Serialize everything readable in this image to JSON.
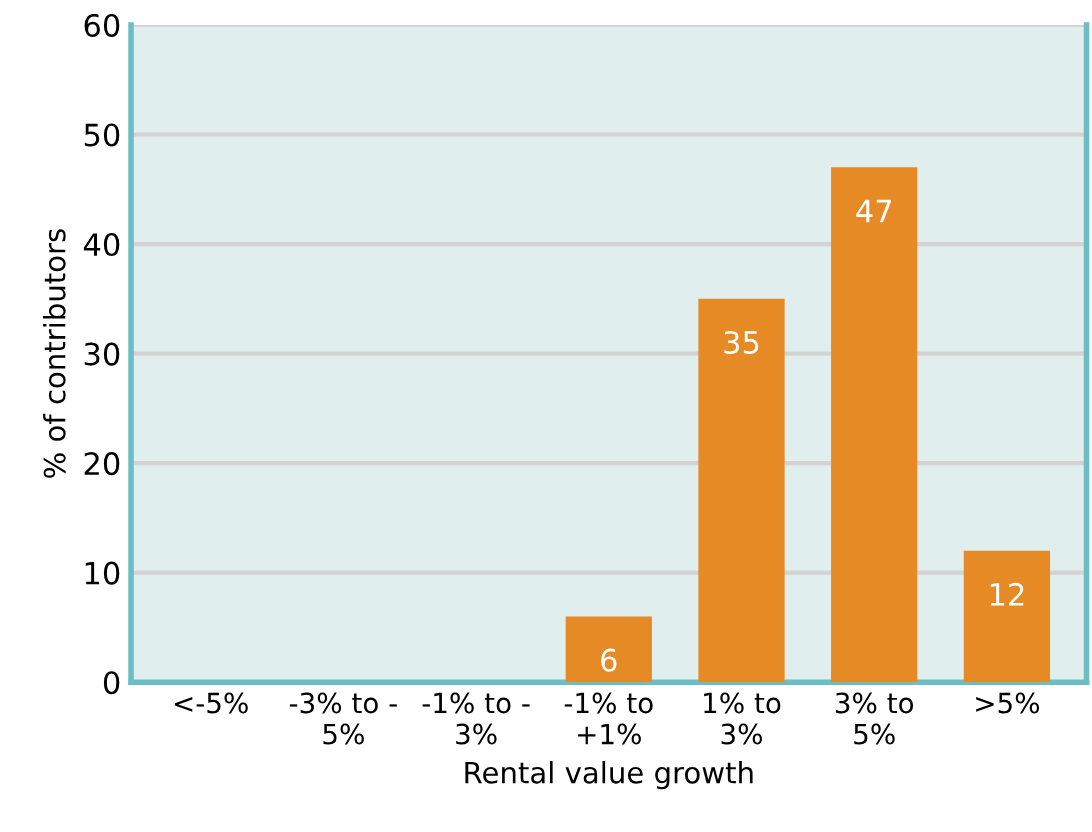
{
  "chart_data": {
    "type": "bar",
    "xlabel": "Rental value growth",
    "ylabel": "% of contributors",
    "categories": [
      "<-5%",
      "-3% to -\n5%",
      "-1% to -\n3%",
      "-1% to\n+1%",
      "1% to\n3%",
      "3% to\n5%",
      ">5%"
    ],
    "values": [
      0,
      0,
      0,
      6,
      35,
      47,
      12
    ],
    "value_labels": [
      null,
      null,
      null,
      "6",
      "35",
      "47",
      "12"
    ],
    "color": "#e68a25",
    "ylim": [
      0,
      60
    ],
    "yticks": [
      0,
      10,
      20,
      30,
      40,
      50,
      60
    ],
    "grid": "y",
    "legend": false
  }
}
